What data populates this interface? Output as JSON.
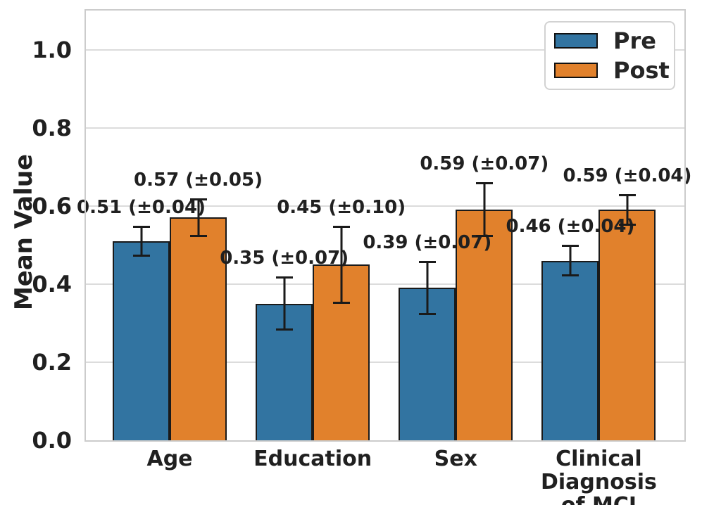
{
  "chart_data": {
    "type": "bar",
    "title": "",
    "categories": [
      "Age",
      "Education",
      "Sex",
      "Clinical\nDiagnosis of MCI"
    ],
    "series": [
      {
        "name": "Pre",
        "color": "#3274a1",
        "values": [
          0.51,
          0.35,
          0.39,
          0.46
        ],
        "errors": [
          0.04,
          0.07,
          0.07,
          0.04
        ],
        "point_labels": [
          "0.51 (±0.04)",
          "0.35 (±0.07)",
          "0.39 (±0.07)",
          "0.46 (±0.04)"
        ]
      },
      {
        "name": "Post",
        "color": "#e1812c",
        "values": [
          0.57,
          0.45,
          0.59,
          0.59
        ],
        "errors": [
          0.05,
          0.1,
          0.07,
          0.04
        ],
        "point_labels": [
          "0.57 (±0.05)",
          "0.45 (±0.10)",
          "0.59 (±0.07)",
          "0.59 (±0.04)"
        ]
      }
    ],
    "xlabel": "",
    "ylabel": "Mean Value",
    "ylim": [
      0,
      1.1
    ],
    "yticks": [
      0.0,
      0.2,
      0.4,
      0.6,
      0.8,
      1.0
    ],
    "grid": true,
    "legend_position": "upper right",
    "bar_edge_color": "#1a1a1a",
    "error_bar_color": "#1a1a1a",
    "grid_color": "#dcdcdc",
    "spine_color": "#cccccc"
  }
}
